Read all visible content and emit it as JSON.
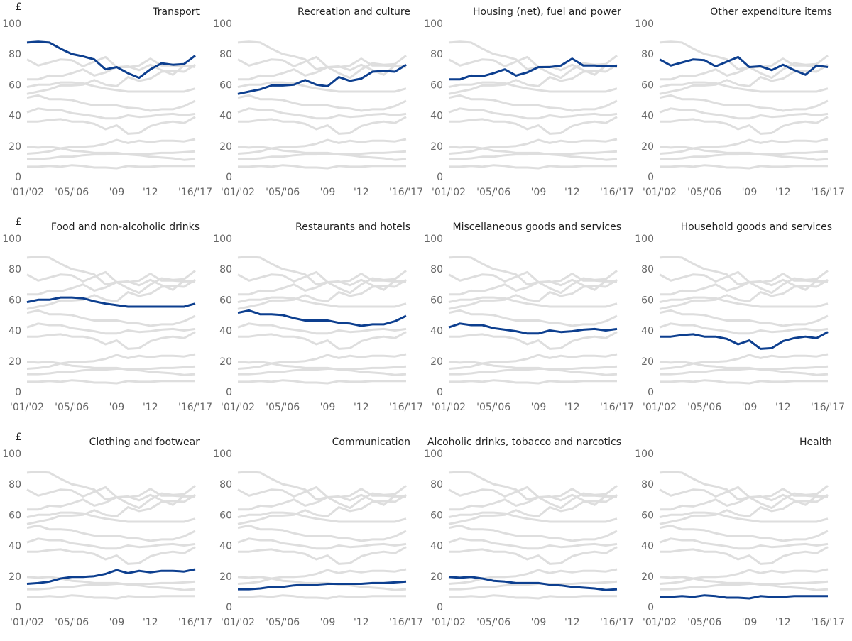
{
  "chart_data": {
    "type": "line",
    "y_unit_label": "£",
    "categories": [
      "'01/'02",
      null,
      null,
      null,
      "'05/'06",
      null,
      null,
      null,
      "'09",
      null,
      null,
      "'12",
      null,
      null,
      null,
      "'16/'17"
    ],
    "ylim": [
      0,
      100
    ],
    "yticks": [
      0,
      20,
      40,
      60,
      80,
      100
    ],
    "highlight_color": "#0d3f8f",
    "context_color": "#dedede",
    "series": [
      {
        "name": "Transport",
        "values": [
          88,
          88.5,
          88,
          84,
          80.5,
          79,
          77,
          70.5,
          72,
          68,
          65,
          70.5,
          74.5,
          73.5,
          74,
          79.5
        ]
      },
      {
        "name": "Recreation and culture",
        "values": [
          54.5,
          56,
          57.5,
          60,
          60,
          60.5,
          63.5,
          60.5,
          59.5,
          65.5,
          63,
          64.5,
          69,
          69.5,
          69,
          73.5
        ]
      },
      {
        "name": "Housing (net), fuel and power",
        "values": [
          64,
          64,
          66.5,
          66,
          68,
          70.5,
          66.5,
          68.5,
          72,
          72,
          73,
          77.5,
          73,
          73,
          72.5,
          72.5
        ]
      },
      {
        "name": "Other expenditure items",
        "values": [
          77,
          73,
          75,
          77,
          76.5,
          72.5,
          75.5,
          78.5,
          72,
          72.5,
          70,
          73.5,
          70,
          67,
          73,
          72
        ]
      },
      {
        "name": "Food and non-alcoholic drinks",
        "values": [
          59,
          60.5,
          60.5,
          62,
          62,
          61.5,
          59.5,
          58,
          57,
          56,
          56,
          56,
          56,
          56,
          56,
          58
        ]
      },
      {
        "name": "Restaurants and hotels",
        "values": [
          52,
          53.5,
          51,
          51,
          50.5,
          48.5,
          47,
          47,
          47,
          45.5,
          45,
          43.5,
          44.5,
          44.5,
          46.5,
          50
        ]
      },
      {
        "name": "Miscellaneous goods and services",
        "values": [
          42.5,
          45,
          44,
          44,
          42,
          41,
          40,
          38.5,
          38.5,
          40.5,
          39.5,
          40,
          41,
          41.5,
          40.5,
          41.5
        ]
      },
      {
        "name": "Household goods and services",
        "values": [
          36.5,
          36.5,
          37.5,
          38,
          36.5,
          36.5,
          35,
          31.5,
          34,
          28.5,
          29,
          33.5,
          35.5,
          36.5,
          35.5,
          39.5
        ]
      },
      {
        "name": "Clothing and footwear",
        "values": [
          15.5,
          16,
          17,
          19,
          20,
          20,
          20.5,
          22,
          24.5,
          22.5,
          24,
          23,
          24,
          24,
          23.5,
          25
        ]
      },
      {
        "name": "Communication",
        "values": [
          12,
          12,
          12.5,
          13.5,
          13.5,
          14.5,
          15,
          15,
          15.5,
          15.5,
          15.5,
          15.5,
          16,
          16,
          16.5,
          17
        ]
      },
      {
        "name": "Alcoholic drinks, tobacco and narcotics",
        "values": [
          20,
          19.5,
          20,
          19,
          17.5,
          17,
          16,
          16,
          16,
          15,
          14.5,
          13.5,
          13,
          12.5,
          11.5,
          12
        ]
      },
      {
        "name": "Health",
        "values": [
          7,
          7,
          7.5,
          7,
          8,
          7.5,
          6.5,
          6.5,
          6,
          7.5,
          7,
          7,
          7.5,
          7.5,
          7.5,
          7.5
        ]
      }
    ]
  }
}
